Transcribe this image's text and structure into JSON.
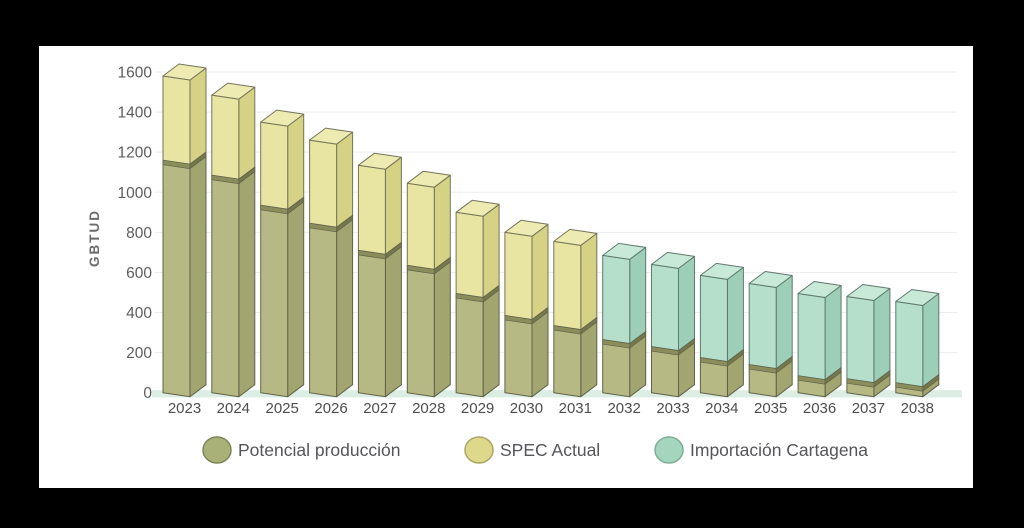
{
  "page": {
    "background": "#000000",
    "card_background": "#ffffff"
  },
  "chart_data": {
    "type": "bar",
    "stacked": true,
    "effect_3d": true,
    "title": "",
    "xlabel": "",
    "ylabel": "GBTUD",
    "ylim": [
      0,
      1600
    ],
    "yticks": [
      0,
      200,
      400,
      600,
      800,
      1000,
      1200,
      1400,
      1600
    ],
    "grid": true,
    "grid_color": "#ededed",
    "floor_color": "#dceee3",
    "legend_position": "bottom",
    "categories": [
      "2023",
      "2024",
      "2025",
      "2026",
      "2027",
      "2028",
      "2029",
      "2030",
      "2031",
      "2032",
      "2033",
      "2034",
      "2035",
      "2036",
      "2037",
      "2038"
    ],
    "series": [
      {
        "name": "Potencial producción",
        "values": [
          1160,
          1085,
          935,
          845,
          710,
          635,
          495,
          385,
          335,
          265,
          230,
          175,
          140,
          85,
          70,
          50
        ],
        "colors": {
          "front": "#b7b985",
          "side": "#a2a570",
          "top": "#c3c492",
          "stroke": "#61624b",
          "divider_front": "#8b8e5b",
          "divider_side": "#74774a",
          "legend_fill": "#a9b178",
          "legend_stroke": "#7e8656"
        }
      },
      {
        "name": "SPEC Actual",
        "values": [
          420,
          400,
          415,
          415,
          425,
          410,
          405,
          415,
          420,
          0,
          0,
          0,
          0,
          0,
          0,
          0
        ],
        "colors": {
          "front": "#e8e4a2",
          "side": "#d5d185",
          "top": "#eeebb2",
          "stroke": "#75755a",
          "legend_fill": "#ded98a",
          "legend_stroke": "#aaa569"
        }
      },
      {
        "name": "Importación Cartagena",
        "values": [
          0,
          0,
          0,
          0,
          0,
          0,
          0,
          0,
          0,
          420,
          410,
          410,
          405,
          410,
          410,
          405
        ],
        "colors": {
          "front": "#b5dfca",
          "side": "#9cceb8",
          "top": "#c8e9d7",
          "stroke": "#5f7a6e",
          "legend_fill": "#a3d6bd",
          "legend_stroke": "#7fae97"
        }
      }
    ],
    "totals": [
      1580,
      1485,
      1350,
      1260,
      1135,
      1045,
      900,
      800,
      755,
      685,
      640,
      585,
      545,
      495,
      480,
      455
    ]
  }
}
